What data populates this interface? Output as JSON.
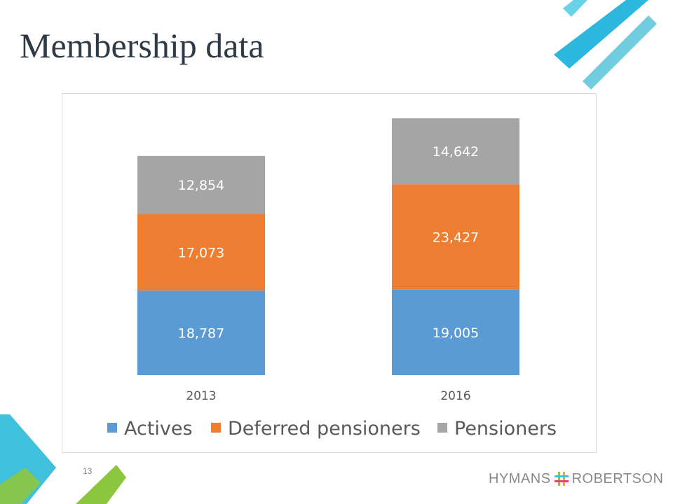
{
  "slide": {
    "title": "Membership data",
    "page_number": "13",
    "brand": {
      "left": "HYMANS",
      "right": "ROBERTSON"
    }
  },
  "colors": {
    "actives": "#5b9bd5",
    "deferred": "#ed7d31",
    "pensioners": "#a5a5a5",
    "title": "#2e3b47",
    "accent_blue": "#36c3e0",
    "accent_green": "#8cc63f"
  },
  "chart_data": {
    "type": "bar",
    "stacked": true,
    "categories": [
      "2013",
      "2016"
    ],
    "series": [
      {
        "name": "Actives",
        "values": [
          18787,
          19005
        ]
      },
      {
        "name": "Deferred pensioners",
        "values": [
          17073,
          23427
        ]
      },
      {
        "name": "Pensioners",
        "values": [
          12854,
          14642
        ]
      }
    ],
    "value_labels": [
      [
        "18,787",
        "19,005"
      ],
      [
        "17,073",
        "23,427"
      ],
      [
        "12,854",
        "14,642"
      ]
    ],
    "title": "",
    "xlabel": "",
    "ylabel": "",
    "ylim": [
      0,
      60000
    ],
    "grid": false,
    "legend_position": "bottom"
  }
}
